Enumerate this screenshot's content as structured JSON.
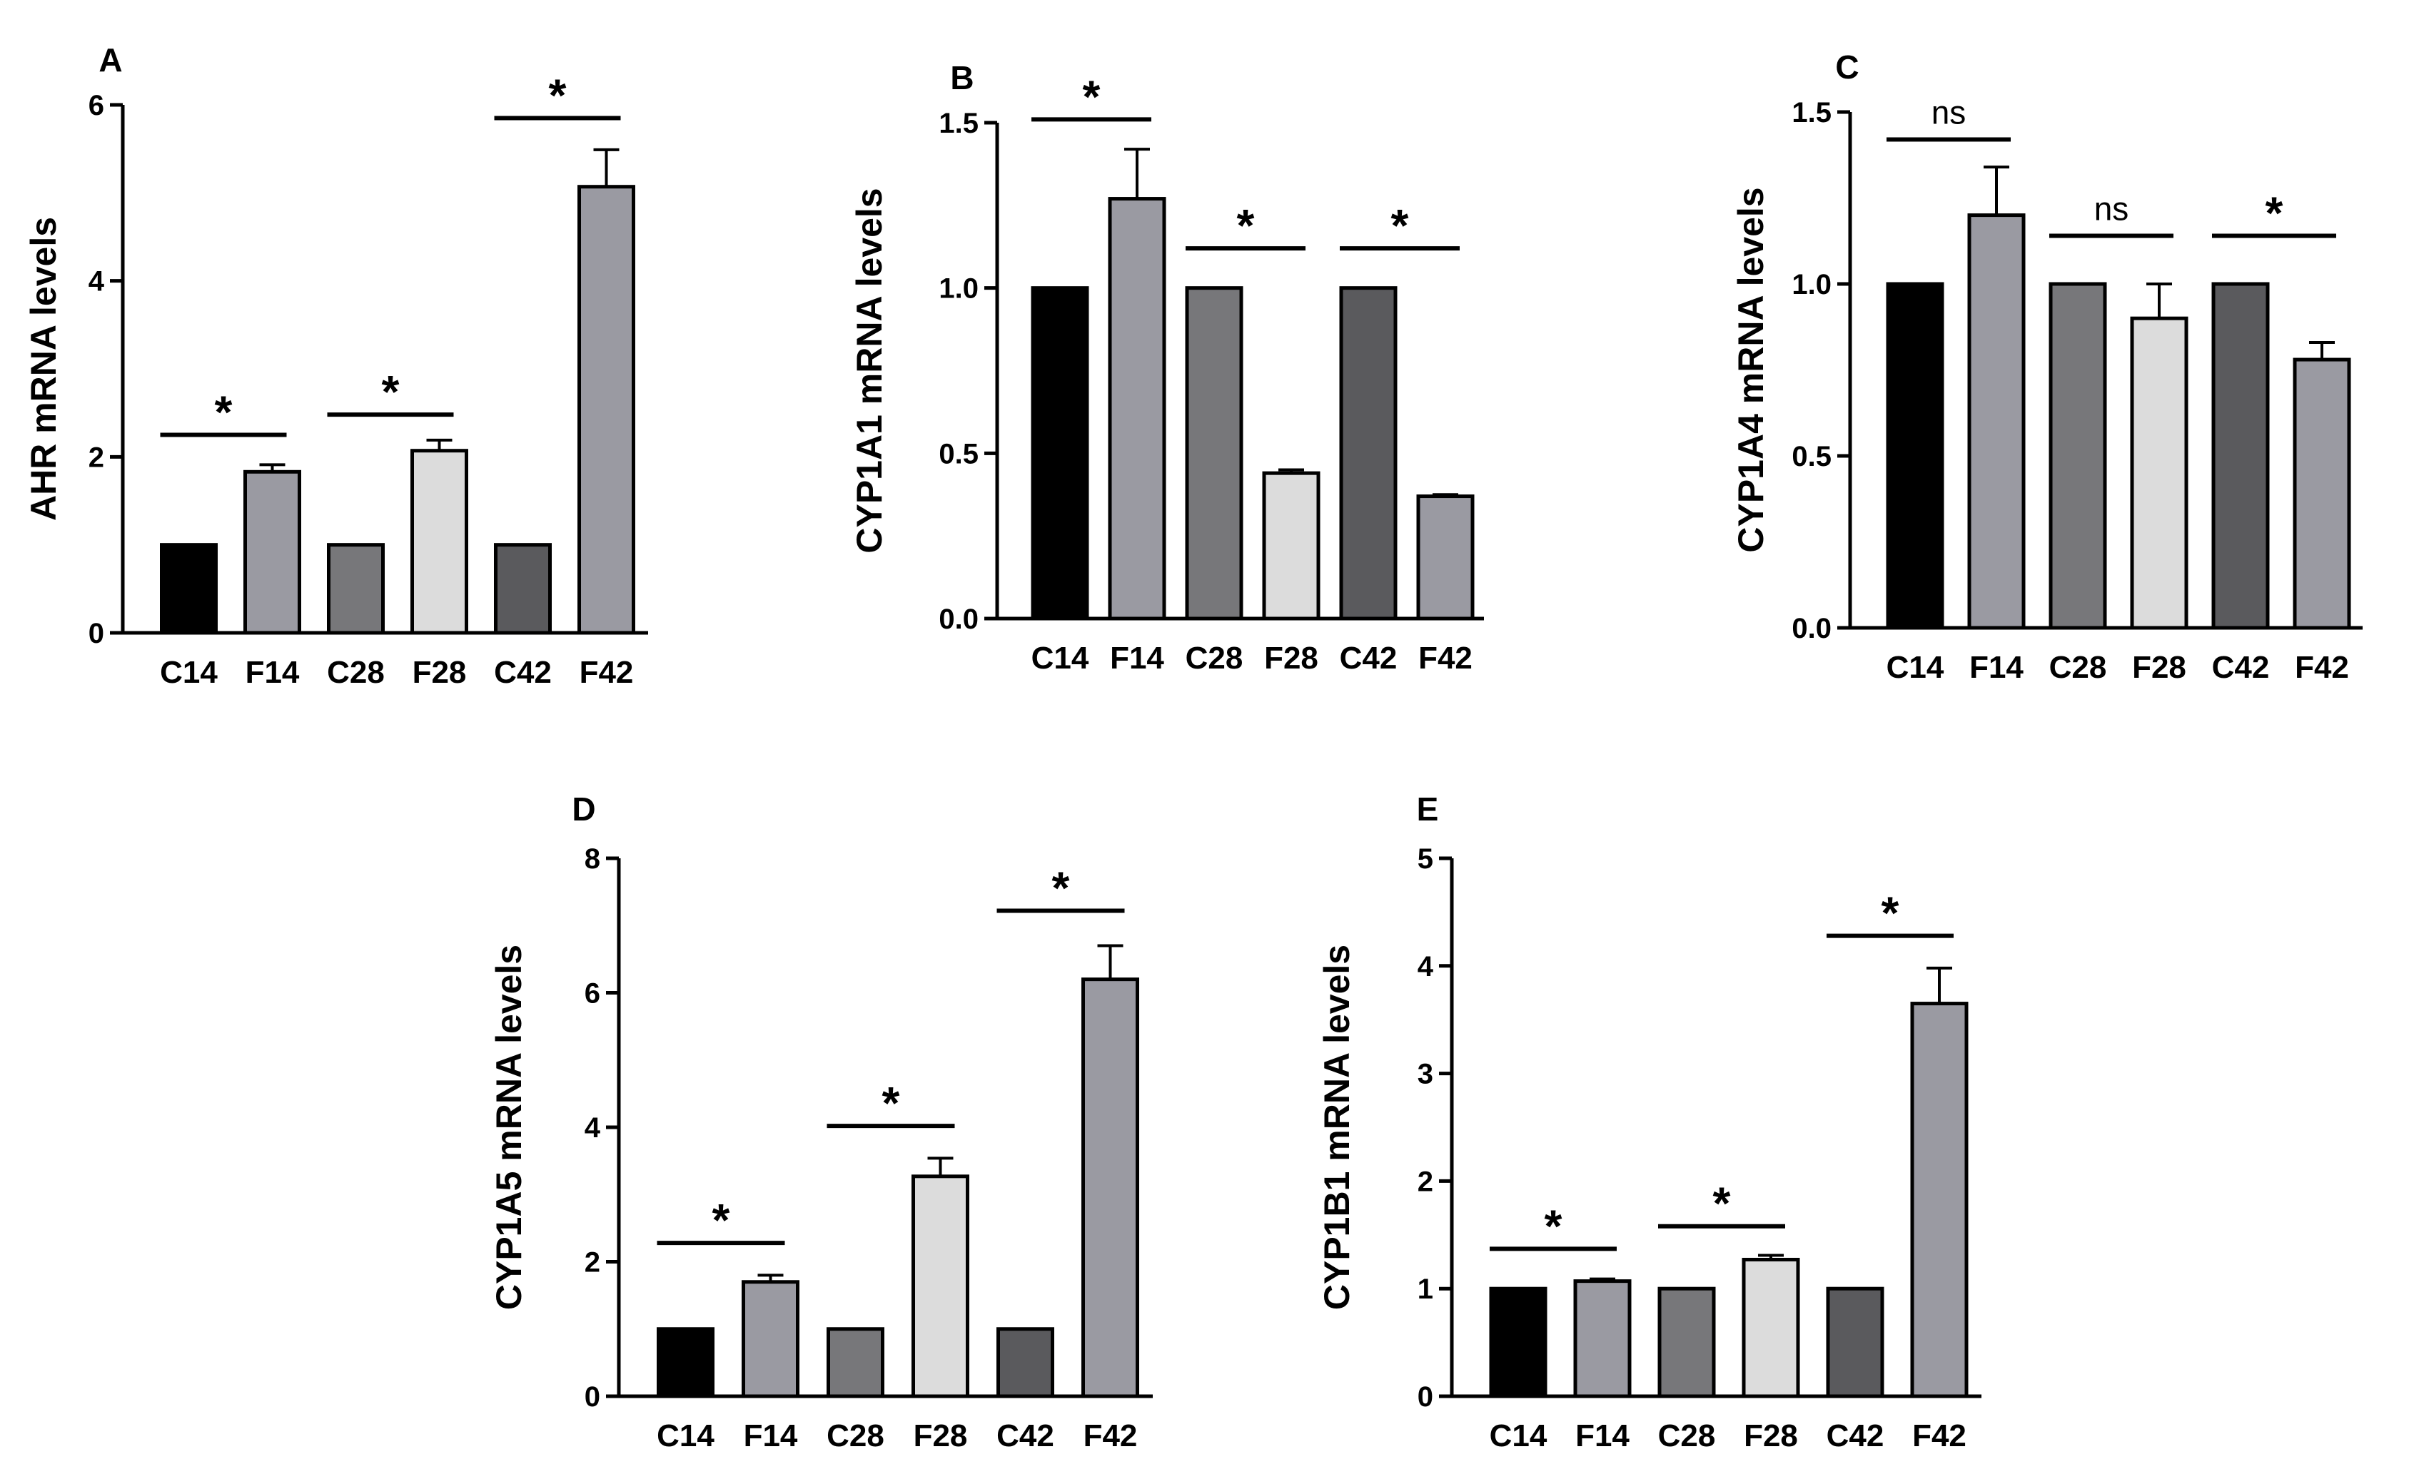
{
  "chart_data": [
    {
      "type": "bar",
      "panel": "A",
      "ylabel": "AHR mRNA levels",
      "ylim": [
        0,
        6
      ],
      "yticks": [
        0,
        2,
        4,
        6
      ],
      "ytick_labels": [
        "0",
        "2",
        "4",
        "6"
      ],
      "categories": [
        "C14",
        "F14",
        "C28",
        "F28",
        "C42",
        "F42"
      ],
      "values": [
        1.0,
        1.83,
        1.0,
        2.07,
        1.0,
        5.07
      ],
      "errors": [
        0,
        0.08,
        0,
        0.12,
        0,
        0.42
      ],
      "colors": [
        "#000000",
        "#9a9aa2",
        "#77777a",
        "#dcdcdc",
        "#5a5a5d",
        "#9a9aa2"
      ],
      "significance": [
        {
          "pair": [
            0,
            1
          ],
          "label": "*",
          "y": 2.25
        },
        {
          "pair": [
            2,
            3
          ],
          "label": "*",
          "y": 2.48
        },
        {
          "pair": [
            4,
            5
          ],
          "label": "*",
          "y": 5.85
        }
      ]
    },
    {
      "type": "bar",
      "panel": "B",
      "ylabel": "CYP1A1 mRNA levels",
      "ylim": [
        0,
        1.5
      ],
      "yticks": [
        0,
        0.5,
        1.0,
        1.5
      ],
      "ytick_labels": [
        "0.0",
        "0.5",
        "1.0",
        "1.5"
      ],
      "categories": [
        "C14",
        "F14",
        "C28",
        "F28",
        "C42",
        "F42"
      ],
      "values": [
        1.0,
        1.27,
        1.0,
        0.44,
        1.0,
        0.37
      ],
      "errors": [
        0,
        0.15,
        0,
        0.01,
        0,
        0.005
      ],
      "colors": [
        "#000000",
        "#9a9aa2",
        "#77777a",
        "#dcdcdc",
        "#5a5a5d",
        "#9a9aa2"
      ],
      "significance": [
        {
          "pair": [
            0,
            1
          ],
          "label": "*",
          "y": 1.51
        },
        {
          "pair": [
            2,
            3
          ],
          "label": "*",
          "y": 1.12
        },
        {
          "pair": [
            4,
            5
          ],
          "label": "*",
          "y": 1.12
        }
      ]
    },
    {
      "type": "bar",
      "panel": "C",
      "ylabel": "CYP1A4 mRNA levels",
      "ylim": [
        0,
        1.5
      ],
      "yticks": [
        0,
        0.5,
        1.0,
        1.5
      ],
      "ytick_labels": [
        "0.0",
        "0.5",
        "1.0",
        "1.5"
      ],
      "categories": [
        "C14",
        "F14",
        "C28",
        "F28",
        "C42",
        "F42"
      ],
      "values": [
        1.0,
        1.2,
        1.0,
        0.9,
        1.0,
        0.78
      ],
      "errors": [
        0,
        0.14,
        0,
        0.1,
        0,
        0.05
      ],
      "colors": [
        "#000000",
        "#9a9aa2",
        "#77777a",
        "#dcdcdc",
        "#5a5a5d",
        "#9a9aa2"
      ],
      "significance": [
        {
          "pair": [
            0,
            1
          ],
          "label": "ns",
          "y": 1.42
        },
        {
          "pair": [
            2,
            3
          ],
          "label": "ns",
          "y": 1.14
        },
        {
          "pair": [
            4,
            5
          ],
          "label": "*",
          "y": 1.14
        }
      ]
    },
    {
      "type": "bar",
      "panel": "D",
      "ylabel": "CYP1A5 mRNA levels",
      "ylim": [
        0,
        8
      ],
      "yticks": [
        0,
        2,
        4,
        6,
        8
      ],
      "ytick_labels": [
        "0",
        "2",
        "4",
        "6",
        "8"
      ],
      "categories": [
        "C14",
        "F14",
        "C28",
        "F28",
        "C42",
        "F42"
      ],
      "values": [
        1.0,
        1.7,
        1.0,
        3.27,
        1.0,
        6.2
      ],
      "errors": [
        0,
        0.1,
        0,
        0.27,
        0,
        0.5
      ],
      "colors": [
        "#000000",
        "#9a9aa2",
        "#77777a",
        "#dcdcdc",
        "#5a5a5d",
        "#9a9aa2"
      ],
      "significance": [
        {
          "pair": [
            0,
            1
          ],
          "label": "*",
          "y": 2.28
        },
        {
          "pair": [
            2,
            3
          ],
          "label": "*",
          "y": 4.02
        },
        {
          "pair": [
            4,
            5
          ],
          "label": "*",
          "y": 7.22
        }
      ]
    },
    {
      "type": "bar",
      "panel": "E",
      "ylabel": "CYP1B1 mRNA levels",
      "ylim": [
        0,
        5
      ],
      "yticks": [
        0,
        1,
        2,
        3,
        4,
        5
      ],
      "ytick_labels": [
        "0",
        "1",
        "2",
        "3",
        "4",
        "5"
      ],
      "categories": [
        "C14",
        "F14",
        "C28",
        "F28",
        "C42",
        "F42"
      ],
      "values": [
        1.0,
        1.07,
        1.0,
        1.27,
        1.0,
        3.65
      ],
      "errors": [
        0,
        0.02,
        0,
        0.04,
        0,
        0.33
      ],
      "colors": [
        "#000000",
        "#9a9aa2",
        "#77777a",
        "#dcdcdc",
        "#5a5a5d",
        "#9a9aa2"
      ],
      "significance": [
        {
          "pair": [
            0,
            1
          ],
          "label": "*",
          "y": 1.37
        },
        {
          "pair": [
            2,
            3
          ],
          "label": "*",
          "y": 1.58
        },
        {
          "pair": [
            4,
            5
          ],
          "label": "*",
          "y": 4.28
        }
      ]
    }
  ]
}
